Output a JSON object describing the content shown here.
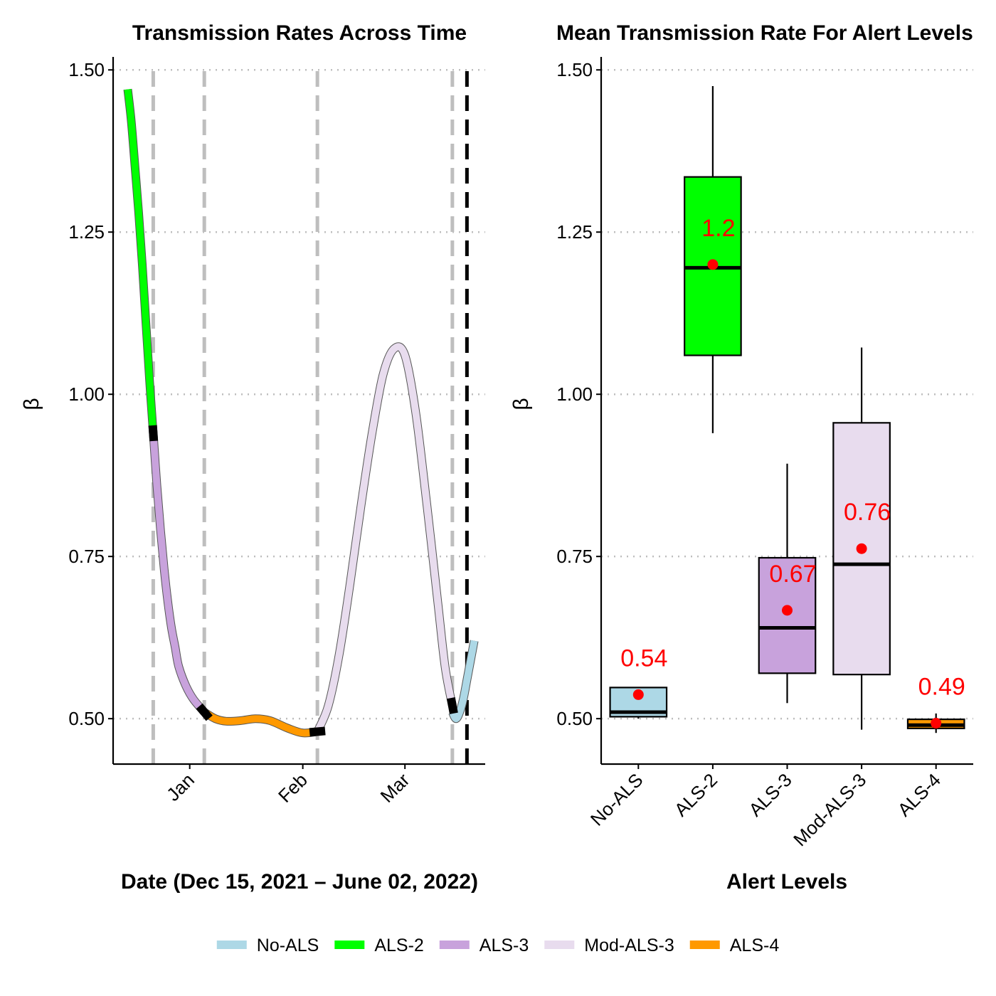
{
  "colors": {
    "No-ALS": "#add8e6",
    "ALS-2": "#00ff00",
    "ALS-3": "#c8a2dc",
    "Mod-ALS-3": "#e8dcee",
    "ALS-4": "#ff9900",
    "mean_point": "#ff0000",
    "grid": "#bebebe"
  },
  "chart_data": [
    {
      "type": "line",
      "title": "Transmission Rates Across Time",
      "xlabel": "Date (Dec 15, 2021 – June 02, 2022)",
      "ylabel": "β",
      "ylim": [
        0.43,
        1.52
      ],
      "yticks": [
        "0.50",
        "0.75",
        "1.00",
        "1.25",
        "1.50"
      ],
      "xticks": [
        {
          "date": "2022-01-01",
          "label": "Jan"
        },
        {
          "date": "2022-02-01",
          "label": "Feb"
        },
        {
          "date": "2022-03-01",
          "label": "Mar"
        }
      ],
      "xlim": [
        "2021-12-11",
        "2022-03-23"
      ],
      "grid": "horizontal dotted",
      "alert_changes": [
        "2021-12-22",
        "2022-01-05",
        "2022-02-05",
        "2022-03-14"
      ],
      "forecast_start": "2022-03-18",
      "series": [
        {
          "name": "ALS-2",
          "points": [
            [
              "2021-12-15",
              1.47
            ],
            [
              "2021-12-16",
              1.42
            ],
            [
              "2021-12-17",
              1.35
            ],
            [
              "2021-12-18",
              1.28
            ],
            [
              "2021-12-19",
              1.2
            ],
            [
              "2021-12-20",
              1.11
            ],
            [
              "2021-12-21",
              1.02
            ],
            [
              "2021-12-22",
              0.94
            ]
          ]
        },
        {
          "name": "ALS-3",
          "points": [
            [
              "2021-12-22",
              0.94
            ],
            [
              "2021-12-23",
              0.86
            ],
            [
              "2021-12-24",
              0.79
            ],
            [
              "2021-12-25",
              0.73
            ],
            [
              "2021-12-26",
              0.68
            ],
            [
              "2021-12-27",
              0.64
            ],
            [
              "2021-12-28",
              0.61
            ],
            [
              "2021-12-29",
              0.58
            ],
            [
              "2021-12-31",
              0.55
            ],
            [
              "2022-01-02",
              0.53
            ],
            [
              "2022-01-05",
              0.51
            ]
          ]
        },
        {
          "name": "ALS-4",
          "points": [
            [
              "2022-01-05",
              0.51
            ],
            [
              "2022-01-08",
              0.5
            ],
            [
              "2022-01-11",
              0.496
            ],
            [
              "2022-01-15",
              0.497
            ],
            [
              "2022-01-19",
              0.5
            ],
            [
              "2022-01-23",
              0.497
            ],
            [
              "2022-01-28",
              0.485
            ],
            [
              "2022-02-01",
              0.478
            ],
            [
              "2022-02-05",
              0.48
            ]
          ]
        },
        {
          "name": "Mod-ALS-3",
          "points": [
            [
              "2022-02-05",
              0.48
            ],
            [
              "2022-02-08",
              0.52
            ],
            [
              "2022-02-11",
              0.6
            ],
            [
              "2022-02-14",
              0.71
            ],
            [
              "2022-02-17",
              0.83
            ],
            [
              "2022-02-20",
              0.94
            ],
            [
              "2022-02-23",
              1.03
            ],
            [
              "2022-02-26",
              1.07
            ],
            [
              "2022-03-01",
              1.06
            ],
            [
              "2022-03-04",
              0.97
            ],
            [
              "2022-03-07",
              0.83
            ],
            [
              "2022-03-10",
              0.68
            ],
            [
              "2022-03-12",
              0.58
            ],
            [
              "2022-03-14",
              0.52
            ]
          ]
        },
        {
          "name": "No-ALS",
          "points": [
            [
              "2022-03-14",
              0.51
            ],
            [
              "2022-03-15",
              0.5
            ],
            [
              "2022-03-16",
              0.51
            ],
            [
              "2022-03-17",
              0.53
            ],
            [
              "2022-03-18",
              0.56
            ],
            [
              "2022-03-19",
              0.59
            ],
            [
              "2022-03-20",
              0.62
            ]
          ]
        }
      ]
    },
    {
      "type": "box",
      "title": "Mean Transmission Rate For Alert Levels",
      "xlabel": "Alert Levels",
      "ylabel": "β",
      "ylim": [
        0.43,
        1.52
      ],
      "yticks": [
        "0.50",
        "0.75",
        "1.00",
        "1.25",
        "1.50"
      ],
      "categories": [
        "No-ALS",
        "ALS-2",
        "ALS-3",
        "Mod-ALS-3",
        "ALS-4"
      ],
      "grid": "horizontal dotted",
      "boxes": [
        {
          "name": "No-ALS",
          "min": 0.5,
          "q1": 0.503,
          "median": 0.51,
          "q3": 0.548,
          "max": 0.548,
          "mean": 0.537,
          "mean_label": "0.54"
        },
        {
          "name": "ALS-2",
          "min": 0.94,
          "q1": 1.06,
          "median": 1.195,
          "q3": 1.335,
          "max": 1.475,
          "mean": 1.2,
          "mean_label": "1.2"
        },
        {
          "name": "ALS-3",
          "min": 0.524,
          "q1": 0.57,
          "median": 0.64,
          "q3": 0.748,
          "max": 0.893,
          "mean": 0.667,
          "mean_label": "0.67"
        },
        {
          "name": "Mod-ALS-3",
          "min": 0.483,
          "q1": 0.568,
          "median": 0.738,
          "q3": 0.956,
          "max": 1.072,
          "mean": 0.762,
          "mean_label": "0.76"
        },
        {
          "name": "ALS-4",
          "min": 0.478,
          "q1": 0.485,
          "median": 0.49,
          "q3": 0.499,
          "max": 0.508,
          "mean": 0.493,
          "mean_label": "0.49"
        }
      ]
    }
  ],
  "legend": {
    "position": "bottom",
    "items": [
      "No-ALS",
      "ALS-2",
      "ALS-3",
      "Mod-ALS-3",
      "ALS-4"
    ]
  }
}
